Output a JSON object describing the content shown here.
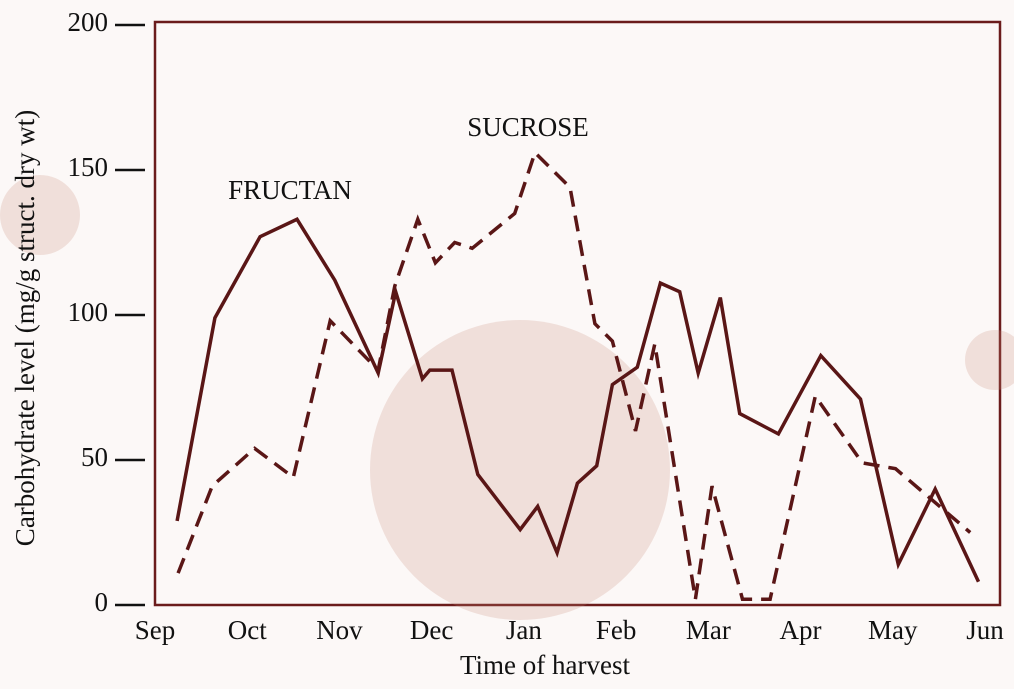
{
  "chart_data": {
    "type": "line",
    "x_label": "Time of harvest",
    "y_label": "Carbohydrate level (mg/g struct. dry wt)",
    "annotations": [
      "FRUCTAN",
      "SUCROSE"
    ],
    "xlim": [
      0,
      9
    ],
    "xticks": [
      {
        "value": 0,
        "label": "Sep"
      },
      {
        "value": 1,
        "label": "Oct"
      },
      {
        "value": 2,
        "label": "Nov"
      },
      {
        "value": 3,
        "label": "Dec"
      },
      {
        "value": 4,
        "label": "Jan"
      },
      {
        "value": 5,
        "label": "Feb"
      },
      {
        "value": 6,
        "label": "Mar"
      },
      {
        "value": 7,
        "label": "Apr"
      },
      {
        "value": 8,
        "label": "May"
      },
      {
        "value": 9,
        "label": "Jun"
      }
    ],
    "ylim": [
      0,
      200
    ],
    "yticks": [
      0,
      50,
      100,
      150,
      200
    ],
    "series": [
      {
        "color": "#5a1616",
        "dash": false,
        "x": [
          0.24,
          0.65,
          1.14,
          1.54,
          1.95,
          2.42,
          2.61,
          2.9,
          2.98,
          3.22,
          3.5,
          3.96,
          4.15,
          4.36,
          4.58,
          4.79,
          4.96,
          5.23,
          5.48,
          5.69,
          5.89,
          6.13,
          6.34,
          6.76,
          7.22,
          7.65,
          8.06,
          8.46,
          8.93
        ],
        "values": [
          29,
          99,
          127,
          133,
          112,
          80,
          108,
          78,
          81,
          81,
          45,
          26,
          34,
          18,
          42,
          48,
          76,
          82,
          111,
          108,
          80,
          106,
          66,
          59,
          86,
          71,
          14,
          40,
          8
        ]
      },
      {
        "color": "#5a1616",
        "dash": true,
        "x": [
          0.25,
          0.62,
          1.08,
          1.5,
          1.9,
          2.42,
          2.6,
          2.85,
          3.04,
          3.25,
          3.44,
          3.9,
          4.12,
          4.5,
          4.77,
          4.96,
          5.21,
          5.42,
          5.86,
          6.04,
          6.37,
          6.67,
          7.16,
          7.67,
          8.03,
          8.84
        ],
        "values": [
          11,
          41,
          54,
          44,
          98,
          81,
          110,
          133,
          118,
          125,
          123,
          135,
          156,
          144,
          97,
          91,
          60,
          90,
          2,
          41,
          2,
          2,
          72,
          49,
          47,
          25
        ]
      }
    ]
  }
}
